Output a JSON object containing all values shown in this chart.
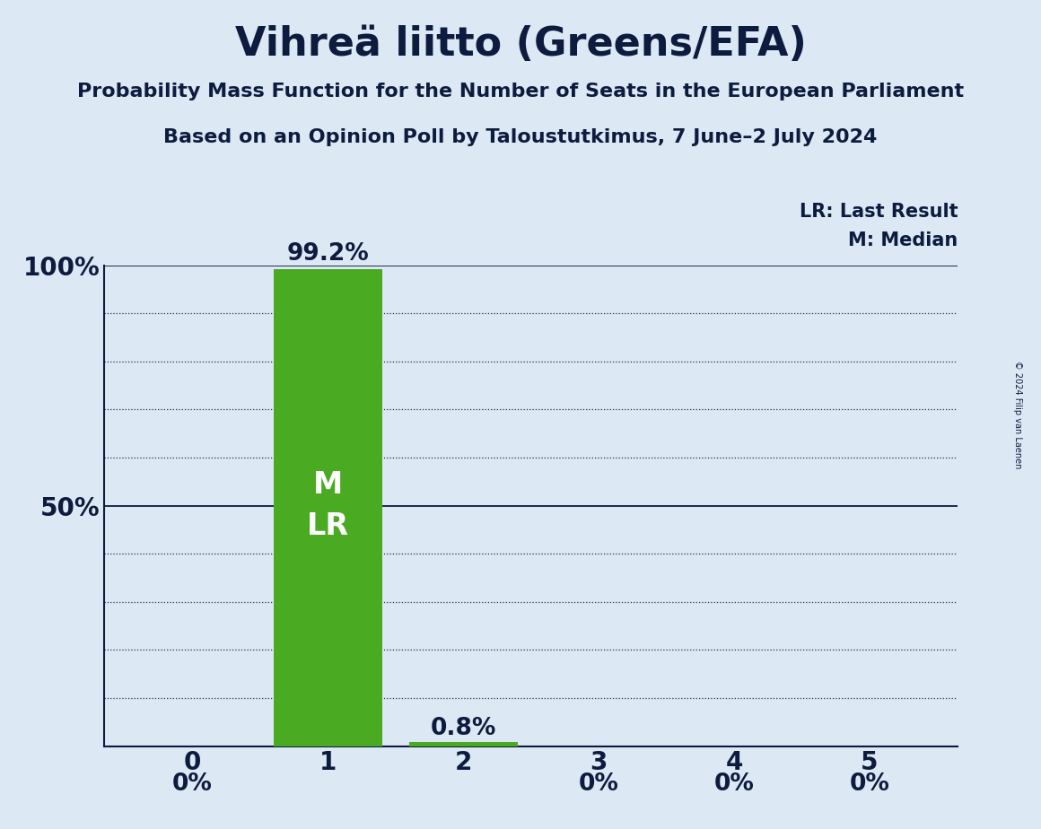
{
  "title": "Vihreä liitto (Greens/EFA)",
  "subtitle1": "Probability Mass Function for the Number of Seats in the European Parliament",
  "subtitle2": "Based on an Opinion Poll by Taloustutkimus, 7 June–2 July 2024",
  "copyright": "© 2024 Filip van Laenen",
  "categories": [
    0,
    1,
    2,
    3,
    4,
    5
  ],
  "values": [
    0.0,
    0.992,
    0.008,
    0.0,
    0.0,
    0.0
  ],
  "value_labels": [
    "0%",
    "99.2%",
    "0.8%",
    "0%",
    "0%",
    "0%"
  ],
  "median": 1,
  "last_result": 1,
  "background_color": "#dce8f4",
  "bar_color": "#4aaa22",
  "legend_lr": "LR: Last Result",
  "legend_m": "M: Median",
  "yticks": [
    0.0,
    0.1,
    0.2,
    0.3,
    0.4,
    0.5,
    0.6,
    0.7,
    0.8,
    0.9,
    1.0
  ],
  "text_color": "#0d1b3e",
  "title_fontsize": 32,
  "subtitle_fontsize": 16,
  "tick_fontsize": 20,
  "label_fontsize": 19,
  "legend_fontsize": 15,
  "ml_fontsize": 24
}
